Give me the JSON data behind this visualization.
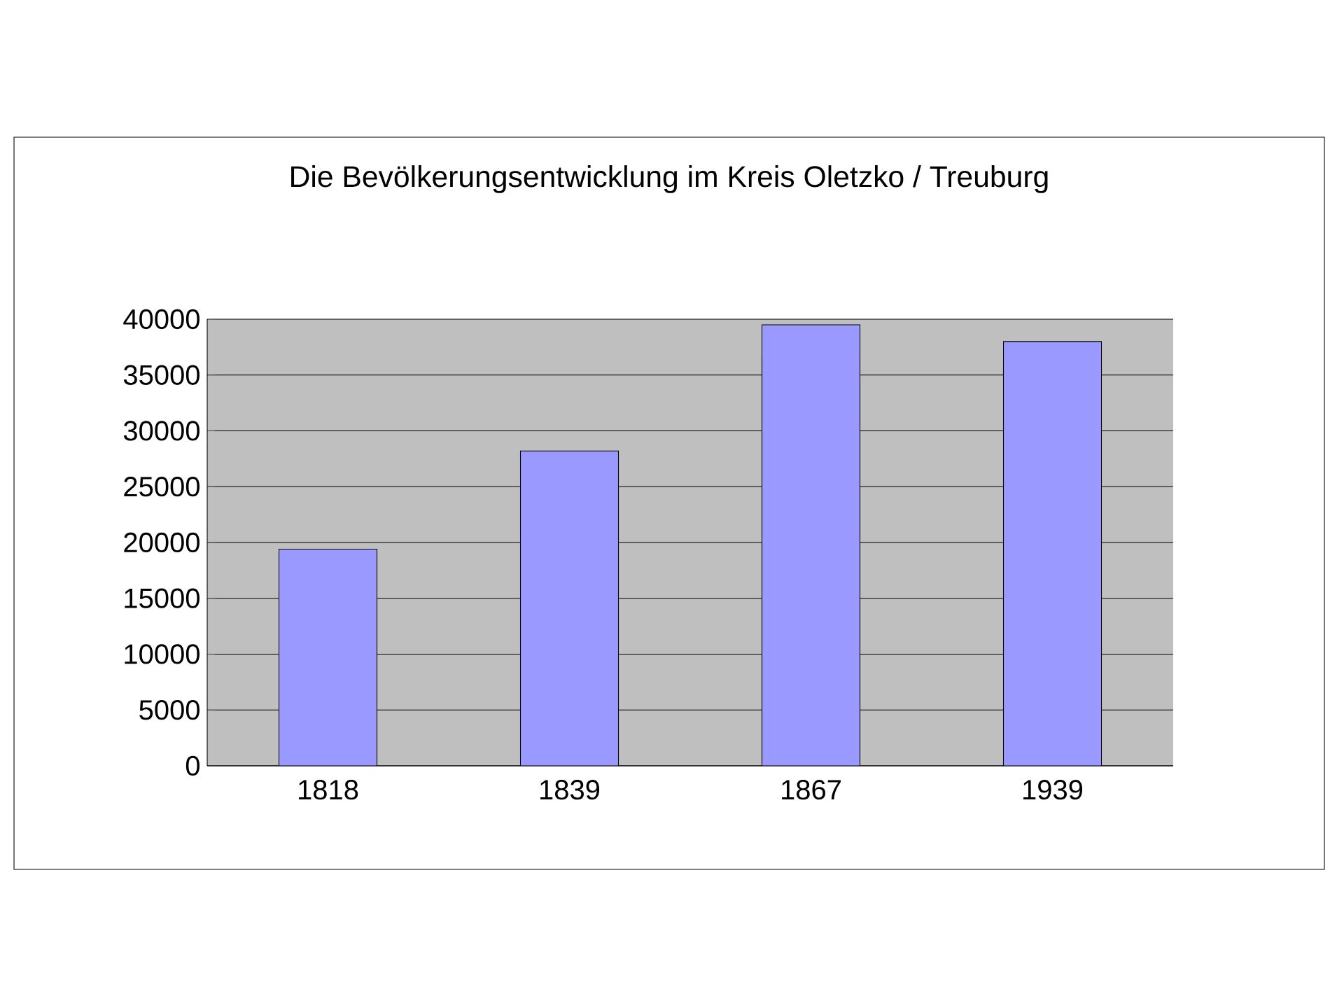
{
  "chart_data": {
    "type": "bar",
    "title": "Die Bevölkerungsentwicklung im Kreis Oletzko / Treuburg",
    "categories": [
      "1818",
      "1839",
      "1867",
      "1939"
    ],
    "values": [
      19400,
      28200,
      39500,
      38000
    ],
    "color": "#9999ff",
    "ylim": [
      0,
      40000
    ],
    "yticks": [
      0,
      5000,
      10000,
      15000,
      20000,
      25000,
      30000,
      35000,
      40000
    ],
    "grid": "y"
  }
}
